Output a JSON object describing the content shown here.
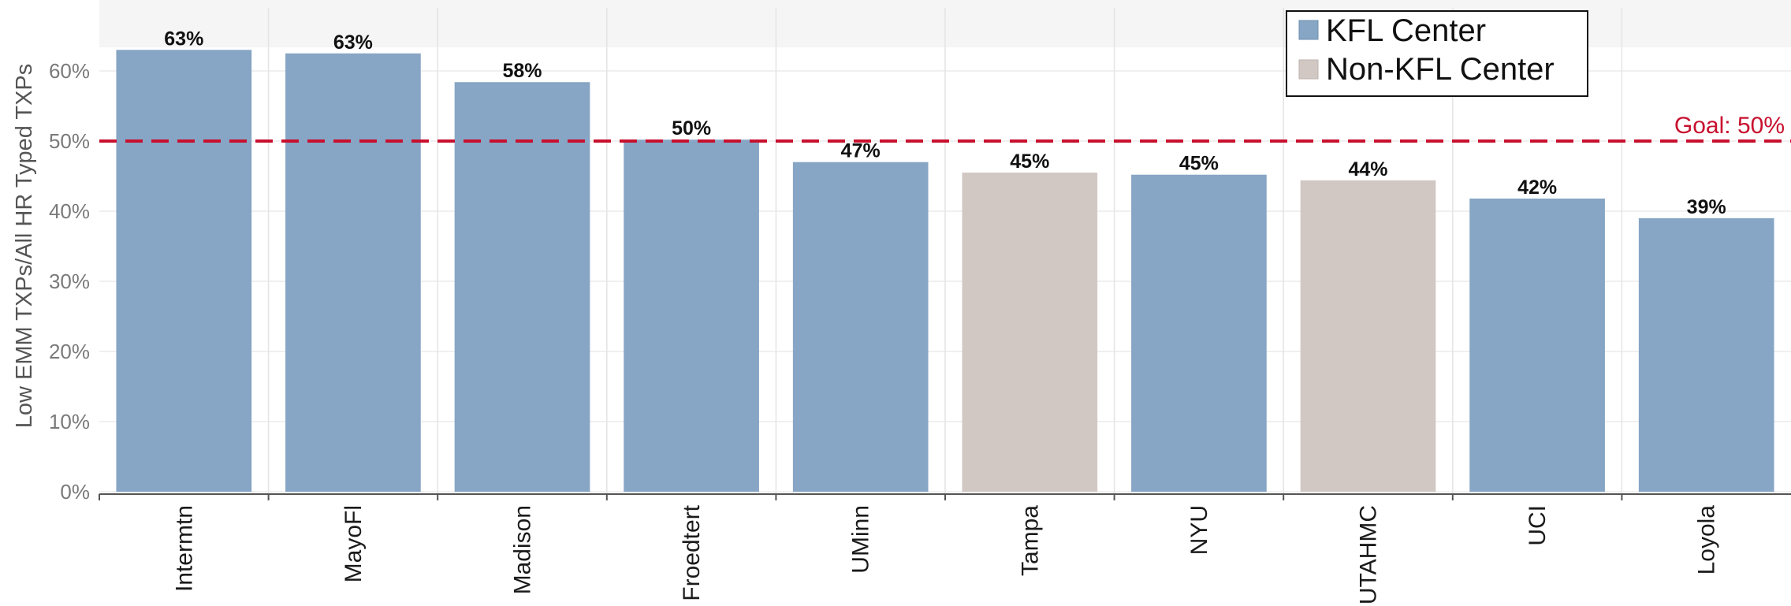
{
  "chart_data": {
    "type": "bar",
    "categories": [
      "Intermtn",
      "MayoFl",
      "Madison",
      "Froedtert",
      "UMinn",
      "Tampa",
      "NYU",
      "UTAHMC",
      "UCI",
      "Loyola"
    ],
    "values": [
      63,
      62.5,
      58.4,
      50.2,
      47,
      45.5,
      45.2,
      44.4,
      41.8,
      39
    ],
    "data_labels": [
      "63%",
      "63%",
      "58%",
      "50%",
      "47%",
      "45%",
      "45%",
      "44%",
      "42%",
      "39%"
    ],
    "groups": [
      "KFL Center",
      "KFL Center",
      "KFL Center",
      "KFL Center",
      "KFL Center",
      "Non-KFL Center",
      "KFL Center",
      "Non-KFL Center",
      "KFL Center",
      "KFL Center"
    ],
    "ylabel": "Low EMM TXPs/All HR Typed TXPs",
    "xlabel": "",
    "ylim": [
      0,
      70
    ],
    "yticks": [
      0,
      10,
      20,
      30,
      40,
      50,
      60
    ],
    "ytick_labels": [
      "0%",
      "10%",
      "20%",
      "30%",
      "40%",
      "50%",
      "60%"
    ],
    "goal": {
      "value": 50,
      "label": "Goal: 50%",
      "color": "#c8102e"
    },
    "legend": {
      "position": "top-right",
      "entries": [
        {
          "name": "KFL Center",
          "color": "#87a5c4"
        },
        {
          "name": "Non-KFL Center",
          "color": "#d2c8c3"
        }
      ]
    },
    "grid": true
  }
}
